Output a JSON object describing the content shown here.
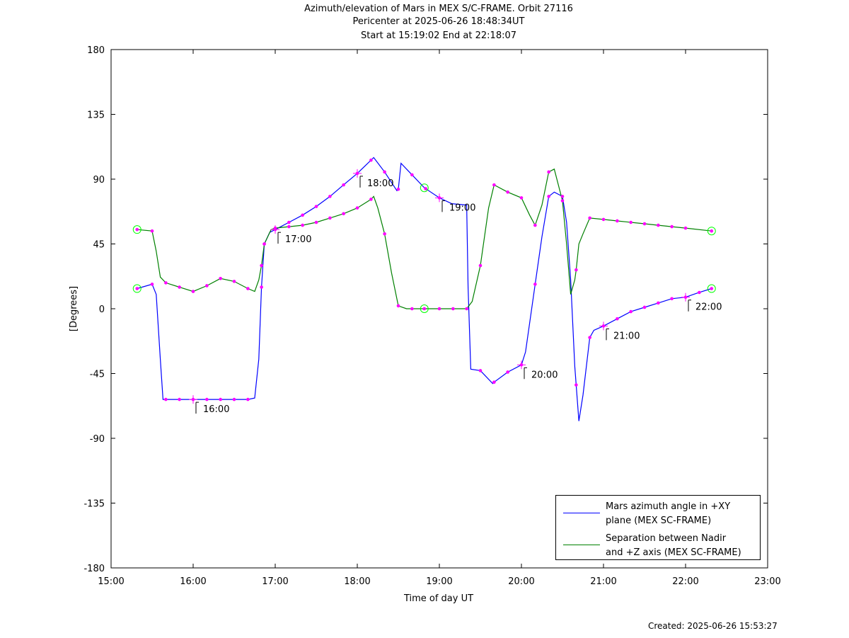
{
  "title": {
    "line1": "Azimuth/elevation of Mars in MEX S/C-FRAME.  Orbit 27116",
    "line2": "Pericenter at 2025-06-26 18:48:34UT",
    "line3": "Start at 15:19:02 End at 22:18:07"
  },
  "footer": {
    "created": "Created: 2025-06-26 15:53:27"
  },
  "legend": {
    "azimuth": {
      "line1": "Mars azimuth angle in +XY",
      "line2": "plane (MEX SC-FRAME)"
    },
    "separation": {
      "line1": "Separation between Nadir",
      "line2": "and +Z axis (MEX SC-FRAME)"
    }
  },
  "chart_data": {
    "type": "line",
    "xlabel": "Time of day UT",
    "ylabel": "[Degrees]",
    "xlim": [
      15.0,
      23.0
    ],
    "ylim": [
      -180,
      180
    ],
    "x_ticks": [
      {
        "value": 15,
        "label": "15:00"
      },
      {
        "value": 16,
        "label": "16:00"
      },
      {
        "value": 17,
        "label": "17:00"
      },
      {
        "value": 18,
        "label": "18:00"
      },
      {
        "value": 19,
        "label": "19:00"
      },
      {
        "value": 20,
        "label": "20:00"
      },
      {
        "value": 21,
        "label": "21:00"
      },
      {
        "value": 22,
        "label": "22:00"
      },
      {
        "value": 23,
        "label": "23:00"
      }
    ],
    "y_ticks": [
      180,
      135,
      90,
      45,
      0,
      -45,
      -90,
      -135,
      -180
    ],
    "grid": false,
    "legend_position": "bottom-right",
    "colors": {
      "azimuth": "#0000ff",
      "separation": "#008000",
      "markers": "#ff00ff",
      "endpoints": "#00ff00"
    },
    "series": [
      {
        "name": "Mars azimuth angle in +XY plane (MEX SC-FRAME)",
        "points": [
          [
            15.317,
            14
          ],
          [
            15.5,
            17
          ],
          [
            15.55,
            10
          ],
          [
            15.6,
            -35
          ],
          [
            15.633,
            -63
          ],
          [
            15.7,
            -63
          ],
          [
            15.833,
            -63
          ],
          [
            16.0,
            -63
          ],
          [
            16.167,
            -63
          ],
          [
            16.333,
            -63
          ],
          [
            16.5,
            -63
          ],
          [
            16.667,
            -63
          ],
          [
            16.75,
            -62
          ],
          [
            16.8,
            -35
          ],
          [
            16.833,
            15
          ],
          [
            16.867,
            45
          ],
          [
            16.933,
            53
          ],
          [
            17.0,
            55
          ],
          [
            17.167,
            60
          ],
          [
            17.333,
            65
          ],
          [
            17.5,
            71
          ],
          [
            17.667,
            78
          ],
          [
            17.833,
            86
          ],
          [
            18.0,
            94
          ],
          [
            18.2,
            105
          ],
          [
            18.333,
            95
          ],
          [
            18.483,
            82
          ],
          [
            18.5,
            83
          ],
          [
            18.533,
            101
          ],
          [
            18.667,
            93
          ],
          [
            18.817,
            84
          ],
          [
            19.0,
            77
          ],
          [
            19.15,
            73
          ],
          [
            19.333,
            72
          ],
          [
            19.35,
            15
          ],
          [
            19.383,
            -42
          ],
          [
            19.5,
            -43
          ],
          [
            19.65,
            -52
          ],
          [
            19.667,
            -51
          ],
          [
            19.833,
            -44
          ],
          [
            20.0,
            -39
          ],
          [
            20.05,
            -30
          ],
          [
            20.1,
            -10
          ],
          [
            20.167,
            17
          ],
          [
            20.25,
            50
          ],
          [
            20.333,
            78
          ],
          [
            20.4,
            81
          ],
          [
            20.5,
            78
          ],
          [
            20.55,
            60
          ],
          [
            20.6,
            20
          ],
          [
            20.65,
            -40
          ],
          [
            20.7,
            -78
          ],
          [
            20.75,
            -60
          ],
          [
            20.833,
            -20
          ],
          [
            20.883,
            -15
          ],
          [
            21.0,
            -12
          ],
          [
            21.167,
            -7
          ],
          [
            21.333,
            -2
          ],
          [
            21.5,
            1
          ],
          [
            21.667,
            4
          ],
          [
            21.833,
            7
          ],
          [
            22.0,
            8
          ],
          [
            22.15,
            11
          ],
          [
            22.317,
            14
          ]
        ],
        "markers_x": [
          15.317,
          15.5,
          15.667,
          15.833,
          16.0,
          16.167,
          16.333,
          16.5,
          16.667,
          16.833,
          16.867,
          17.0,
          17.167,
          17.333,
          17.5,
          17.667,
          17.833,
          18.0,
          18.167,
          18.333,
          18.5,
          18.667,
          18.833,
          19.0,
          19.5,
          19.667,
          19.833,
          20.0,
          20.167,
          20.333,
          20.5,
          20.667,
          20.833,
          21.0,
          21.167,
          21.333,
          21.5,
          21.667,
          21.833,
          22.0,
          22.167,
          22.317
        ]
      },
      {
        "name": "Separation between Nadir and +Z axis (MEX SC-FRAME)",
        "points": [
          [
            15.317,
            55
          ],
          [
            15.5,
            54
          ],
          [
            15.55,
            40
          ],
          [
            15.6,
            22
          ],
          [
            15.667,
            18
          ],
          [
            15.833,
            15
          ],
          [
            16.0,
            12
          ],
          [
            16.167,
            16
          ],
          [
            16.333,
            21
          ],
          [
            16.5,
            19
          ],
          [
            16.667,
            14
          ],
          [
            16.75,
            12
          ],
          [
            16.8,
            20
          ],
          [
            16.833,
            30
          ],
          [
            16.867,
            45
          ],
          [
            16.95,
            55
          ],
          [
            17.0,
            56
          ],
          [
            17.167,
            57
          ],
          [
            17.333,
            58
          ],
          [
            17.5,
            60
          ],
          [
            17.667,
            63
          ],
          [
            17.833,
            66
          ],
          [
            18.0,
            70
          ],
          [
            18.167,
            76
          ],
          [
            18.2,
            78
          ],
          [
            18.25,
            70
          ],
          [
            18.333,
            52
          ],
          [
            18.417,
            25
          ],
          [
            18.5,
            2
          ],
          [
            18.6,
            0
          ],
          [
            18.817,
            0
          ],
          [
            19.0,
            0
          ],
          [
            19.167,
            0
          ],
          [
            19.333,
            0
          ],
          [
            19.4,
            5
          ],
          [
            19.5,
            30
          ],
          [
            19.6,
            70
          ],
          [
            19.667,
            86
          ],
          [
            19.833,
            81
          ],
          [
            20.0,
            77
          ],
          [
            20.1,
            65
          ],
          [
            20.167,
            58
          ],
          [
            20.25,
            72
          ],
          [
            20.333,
            95
          ],
          [
            20.4,
            97
          ],
          [
            20.5,
            75
          ],
          [
            20.55,
            45
          ],
          [
            20.6,
            10
          ],
          [
            20.65,
            20
          ],
          [
            20.667,
            27
          ],
          [
            20.7,
            45
          ],
          [
            20.75,
            52
          ],
          [
            20.833,
            63
          ],
          [
            21.0,
            62
          ],
          [
            21.167,
            61
          ],
          [
            21.333,
            60
          ],
          [
            21.5,
            59
          ],
          [
            21.667,
            58
          ],
          [
            21.833,
            57
          ],
          [
            22.0,
            56
          ],
          [
            22.317,
            54
          ]
        ],
        "markers_x": [
          15.317,
          15.5,
          15.667,
          15.833,
          16.0,
          16.167,
          16.333,
          16.5,
          16.667,
          16.833,
          16.867,
          17.0,
          17.167,
          17.333,
          17.5,
          17.667,
          17.833,
          18.0,
          18.167,
          18.333,
          18.5,
          18.667,
          18.817,
          19.0,
          19.167,
          19.333,
          19.5,
          19.667,
          19.833,
          20.0,
          20.167,
          20.333,
          20.5,
          20.667,
          20.833,
          21.0,
          21.167,
          21.333,
          21.5,
          21.667,
          21.833,
          22.0,
          22.317
        ]
      }
    ],
    "annotations": [
      {
        "text": "16:00",
        "x": 16.0,
        "y": -63
      },
      {
        "text": "17:00",
        "x": 17.0,
        "y": 55
      },
      {
        "text": "18:00",
        "x": 18.0,
        "y": 94
      },
      {
        "text": "19:00",
        "x": 19.0,
        "y": 77
      },
      {
        "text": "20:00",
        "x": 20.0,
        "y": -39
      },
      {
        "text": "21:00",
        "x": 21.0,
        "y": -12
      },
      {
        "text": "22:00",
        "x": 22.0,
        "y": 8
      }
    ],
    "circle_markers": [
      {
        "x": 15.317,
        "y": 55
      },
      {
        "x": 15.317,
        "y": 14
      },
      {
        "x": 18.817,
        "y": 84
      },
      {
        "x": 18.817,
        "y": 0
      },
      {
        "x": 22.317,
        "y": 54
      },
      {
        "x": 22.317,
        "y": 14
      }
    ]
  }
}
